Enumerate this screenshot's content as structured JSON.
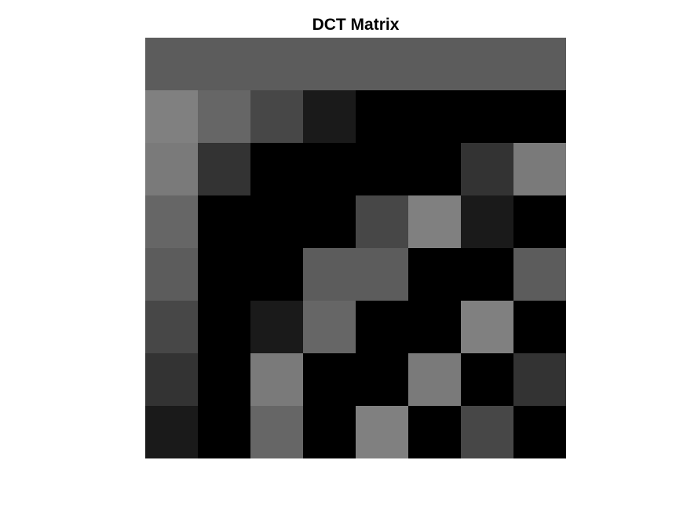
{
  "chart_data": {
    "type": "heatmap",
    "title": "DCT Matrix",
    "xlabel": "",
    "ylabel": "",
    "rows": 8,
    "cols": 8,
    "colormap": "gray",
    "value_range": [
      0,
      255
    ],
    "values": [
      [
        92,
        92,
        92,
        92,
        92,
        92,
        92,
        92
      ],
      [
        128,
        102,
        71,
        26,
        0,
        0,
        0,
        0
      ],
      [
        122,
        51,
        0,
        0,
        0,
        0,
        51,
        122
      ],
      [
        102,
        0,
        0,
        0,
        71,
        128,
        26,
        0
      ],
      [
        92,
        0,
        0,
        92,
        92,
        0,
        0,
        92
      ],
      [
        71,
        0,
        26,
        102,
        0,
        0,
        128,
        0
      ],
      [
        51,
        0,
        122,
        0,
        0,
        122,
        0,
        51
      ],
      [
        26,
        0,
        102,
        0,
        128,
        0,
        71,
        0
      ]
    ],
    "axes_visible": false,
    "grid": false
  }
}
